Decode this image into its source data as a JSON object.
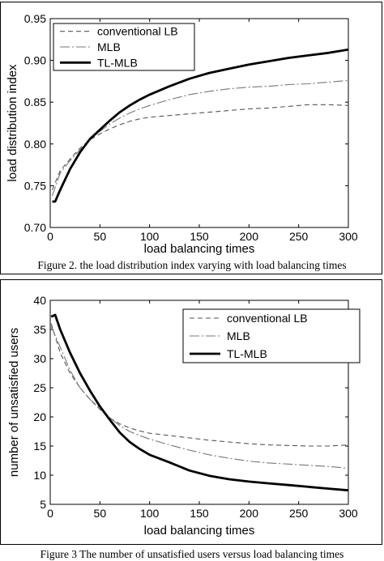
{
  "chart_data": [
    {
      "type": "line",
      "xlabel": "load balancing times",
      "ylabel": "load distribution index",
      "xlim": [
        0,
        300
      ],
      "ylim": [
        0.7,
        0.95
      ],
      "xticks": [
        0,
        50,
        100,
        150,
        200,
        250,
        300
      ],
      "yticks": [
        0.7,
        0.75,
        0.8,
        0.85,
        0.9,
        0.95
      ],
      "legend_position": "top-right",
      "grid": false,
      "caption": "Figure 2. the load distribution index varying with load balancing times",
      "series": [
        {
          "name": "conventional LB",
          "style": "dashed",
          "color": "#555555",
          "x": [
            2,
            10,
            20,
            30,
            40,
            50,
            60,
            70,
            80,
            90,
            100,
            120,
            140,
            160,
            180,
            200,
            220,
            240,
            260,
            280,
            300
          ],
          "y": [
            0.745,
            0.768,
            0.782,
            0.795,
            0.805,
            0.812,
            0.818,
            0.823,
            0.827,
            0.83,
            0.832,
            0.834,
            0.836,
            0.838,
            0.84,
            0.842,
            0.843,
            0.845,
            0.847,
            0.847,
            0.846
          ]
        },
        {
          "name": "MLB",
          "style": "dashdot",
          "color": "#777777",
          "x": [
            2,
            10,
            20,
            30,
            40,
            50,
            60,
            70,
            80,
            90,
            100,
            120,
            140,
            160,
            180,
            200,
            220,
            240,
            260,
            280,
            300
          ],
          "y": [
            0.738,
            0.765,
            0.78,
            0.793,
            0.805,
            0.815,
            0.824,
            0.831,
            0.837,
            0.842,
            0.846,
            0.853,
            0.859,
            0.863,
            0.866,
            0.868,
            0.869,
            0.871,
            0.872,
            0.874,
            0.876
          ]
        },
        {
          "name": "TL-MLB",
          "style": "solid",
          "color": "#000000",
          "x": [
            2,
            5,
            10,
            20,
            30,
            40,
            50,
            60,
            70,
            80,
            90,
            100,
            120,
            140,
            160,
            180,
            200,
            220,
            240,
            260,
            280,
            300
          ],
          "y": [
            0.731,
            0.731,
            0.745,
            0.77,
            0.79,
            0.806,
            0.817,
            0.828,
            0.838,
            0.846,
            0.853,
            0.859,
            0.869,
            0.878,
            0.885,
            0.89,
            0.895,
            0.899,
            0.903,
            0.906,
            0.909,
            0.913
          ]
        }
      ]
    },
    {
      "type": "line",
      "xlabel": "load balancing times",
      "ylabel": "number of unsatisfied users",
      "xlim": [
        0,
        300
      ],
      "ylim": [
        5,
        40
      ],
      "xticks": [
        0,
        50,
        100,
        150,
        200,
        250,
        300
      ],
      "yticks": [
        5,
        10,
        15,
        20,
        25,
        30,
        35,
        40
      ],
      "legend_position": "top-right",
      "grid": false,
      "caption": "Figure 3 The number of unsatisfied users versus load balancing times",
      "series": [
        {
          "name": "conventional LB",
          "style": "dashed",
          "color": "#555555",
          "x": [
            1,
            10,
            20,
            30,
            40,
            50,
            60,
            70,
            80,
            90,
            100,
            120,
            140,
            160,
            180,
            200,
            220,
            240,
            260,
            280,
            300
          ],
          "y": [
            36,
            31,
            27.5,
            25,
            23,
            21.3,
            19.8,
            18.8,
            18.1,
            17.6,
            17.2,
            16.8,
            16.4,
            16,
            15.7,
            15.4,
            15.2,
            15.1,
            15,
            15,
            15.2
          ]
        },
        {
          "name": "MLB",
          "style": "dashdot",
          "color": "#777777",
          "x": [
            1,
            10,
            20,
            30,
            40,
            50,
            60,
            70,
            80,
            90,
            100,
            120,
            140,
            160,
            180,
            200,
            220,
            240,
            260,
            280,
            300
          ],
          "y": [
            35.5,
            32,
            28,
            25,
            23,
            21.5,
            19.8,
            18.5,
            17.5,
            16.8,
            16.2,
            15.2,
            14.3,
            13.5,
            12.9,
            12.4,
            12.1,
            11.9,
            11.7,
            11.5,
            11.2
          ]
        },
        {
          "name": "TL-MLB",
          "style": "solid",
          "color": "#000000",
          "x": [
            1,
            5,
            10,
            20,
            30,
            40,
            50,
            60,
            70,
            80,
            90,
            100,
            120,
            140,
            160,
            180,
            200,
            220,
            240,
            260,
            280,
            300
          ],
          "y": [
            37.2,
            37.5,
            35,
            31,
            27.5,
            24.5,
            21.8,
            19.5,
            17.3,
            15.7,
            14.5,
            13.5,
            12.2,
            10.8,
            9.9,
            9.3,
            8.9,
            8.6,
            8.3,
            8,
            7.7,
            7.4
          ]
        }
      ]
    }
  ]
}
